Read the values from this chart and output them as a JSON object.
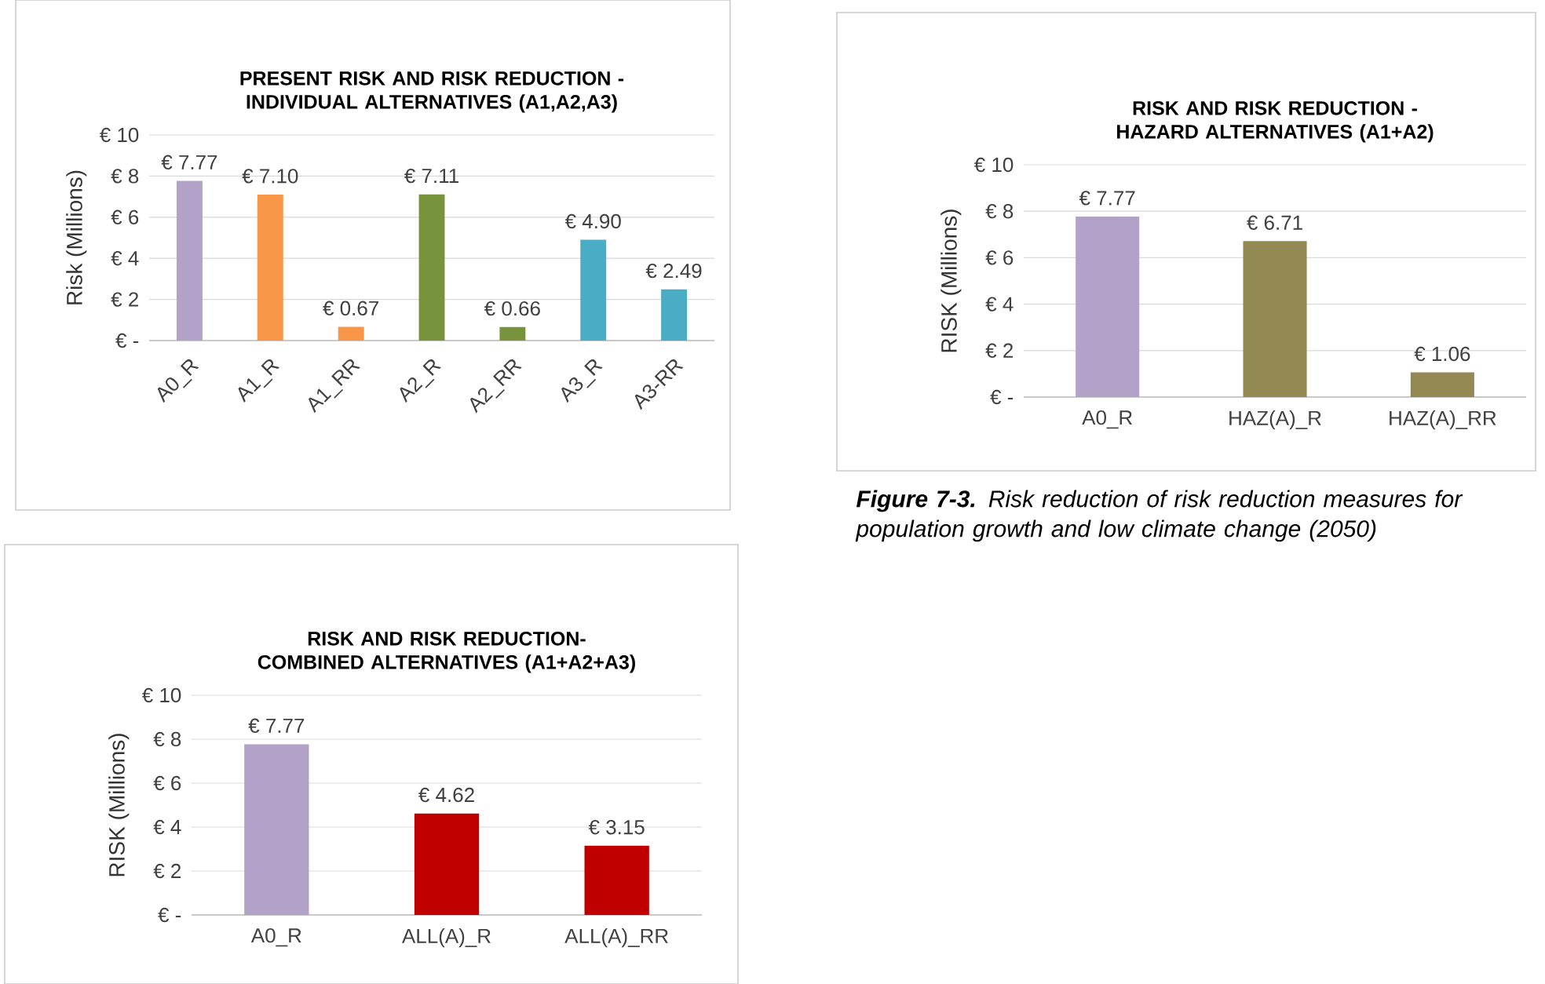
{
  "chart_data": [
    {
      "type": "bar",
      "title": "PRESENT RISK AND RISK REDUCTION - INDIVIDUAL ALTERNATIVES (A1,A2,A3)",
      "ylabel": "Risk (Millions)",
      "categories": [
        "A0_R",
        "A1_R",
        "A1_RR",
        "A2_R",
        "A2_RR",
        "A3_R",
        "A3-RR"
      ],
      "values": [
        7.77,
        7.1,
        0.67,
        7.11,
        0.66,
        4.9,
        2.49
      ],
      "value_labels": [
        "€ 7.77",
        "€ 7.10",
        "€ 0.67",
        "€ 7.11",
        "€ 0.66",
        "€ 4.90",
        "€ 2.49"
      ],
      "colors": [
        "#b3a2c7",
        "#f79646",
        "#f79646",
        "#77933c",
        "#77933c",
        "#4bacc6",
        "#4bacc6"
      ],
      "ylim": [
        0,
        10
      ],
      "yticks": [
        {
          "value": 0,
          "label": "€ -"
        },
        {
          "value": 2,
          "label": "€ 2"
        },
        {
          "value": 4,
          "label": "€ 4"
        },
        {
          "value": 6,
          "label": "€ 6"
        },
        {
          "value": 8,
          "label": "€ 8"
        },
        {
          "value": 10,
          "label": "€ 10"
        }
      ],
      "grid": "y"
    },
    {
      "type": "bar",
      "title": "RISK AND RISK REDUCTION - HAZARD ALTERNATIVES (A1+A2)",
      "ylabel": "RISK (Millions)",
      "categories": [
        "A0_R",
        "HAZ(A)_R",
        "HAZ(A)_RR"
      ],
      "values": [
        7.77,
        6.71,
        1.06
      ],
      "value_labels": [
        "€ 7.77",
        "€ 6.71",
        "€ 1.06"
      ],
      "colors": [
        "#b3a2c7",
        "#938953",
        "#938953"
      ],
      "ylim": [
        0,
        10
      ],
      "yticks": [
        {
          "value": 0,
          "label": "€ -"
        },
        {
          "value": 2,
          "label": "€ 2"
        },
        {
          "value": 4,
          "label": "€ 4"
        },
        {
          "value": 6,
          "label": "€ 6"
        },
        {
          "value": 8,
          "label": "€ 8"
        },
        {
          "value": 10,
          "label": "€ 10"
        }
      ],
      "grid": "y",
      "annotations": [
        "**Figure 7-3.** Risk reduction of risk reduction measures for population growth and low climate change (2050)"
      ]
    },
    {
      "type": "bar",
      "title": "RISK AND RISK REDUCTION- COMBINED ALTERNATIVES (A1+A2+A3)",
      "ylabel": "RISK (Millions)",
      "categories": [
        "A0_R",
        "ALL(A)_R",
        "ALL(A)_RR"
      ],
      "values": [
        7.77,
        4.62,
        3.15
      ],
      "value_labels": [
        "€ 7.77",
        "€ 4.62",
        "€ 3.15"
      ],
      "colors": [
        "#b3a2c7",
        "#c00000",
        "#c00000"
      ],
      "ylim": [
        0,
        10
      ],
      "yticks": [
        {
          "value": 0,
          "label": "€ -"
        },
        {
          "value": 2,
          "label": "€ 2"
        },
        {
          "value": 4,
          "label": "€ 4"
        },
        {
          "value": 6,
          "label": "€ 6"
        },
        {
          "value": 8,
          "label": "€ 8"
        },
        {
          "value": 10,
          "label": "€ 10"
        }
      ],
      "grid": "y"
    }
  ]
}
